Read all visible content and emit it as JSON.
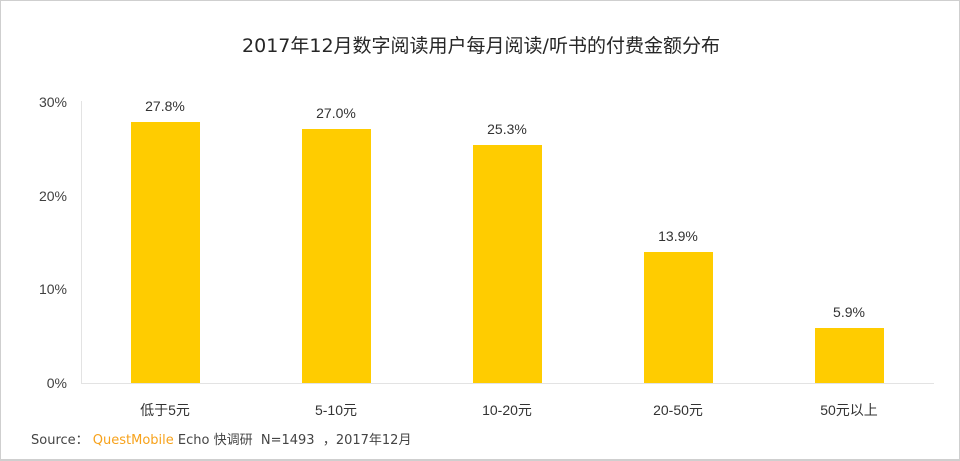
{
  "chart_data": {
    "type": "bar",
    "title": "2017年12月数字阅读用户每月阅读/听书的付费金额分布",
    "categories": [
      "低于5元",
      "5-10元",
      "10-20元",
      "20-50元",
      "50元以上"
    ],
    "values": [
      27.8,
      27.0,
      25.3,
      13.9,
      5.9
    ],
    "value_labels": [
      "27.8%",
      "27.0%",
      "25.3%",
      "13.9%",
      "5.9%"
    ],
    "xlabel": "",
    "ylabel": "",
    "ylim": [
      0,
      30
    ],
    "yticks": [
      "0%",
      "10%",
      "20%",
      "30%"
    ],
    "grid": false,
    "legend": null,
    "bar_color": "#FFCC00"
  },
  "footer": {
    "source_prefix": "Source： ",
    "brand": "QuestMobile",
    "source_rest": " Echo 快调研  N=1493  ，2017年12月",
    "brand_color": "#F7A21B"
  }
}
